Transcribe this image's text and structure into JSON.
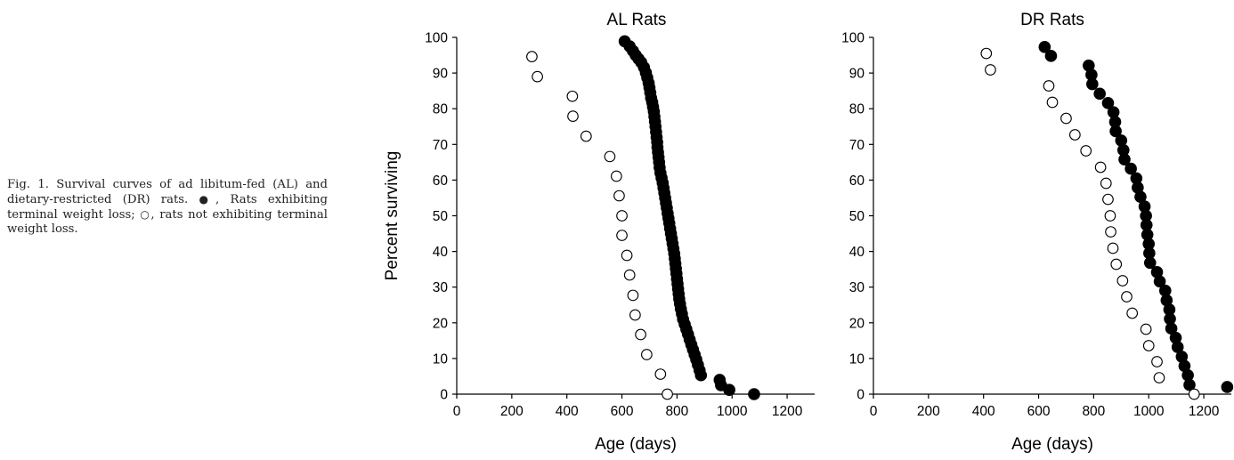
{
  "caption": {
    "prefix": "Fig. 1. Survival curves of ad libitum-fed (AL) and dietary-restricted (DR) rats. ",
    "filled_symbol": "●",
    "filled_text": ", Rats exhibiting terminal weight loss; ",
    "open_symbol": "○",
    "open_text": ", rats not exhibiting terminal weight loss."
  },
  "chart_data": [
    {
      "type": "scatter",
      "title": "AL Rats",
      "xlabel": "Age (days)",
      "ylabel": "Percent surviving",
      "xlim": [
        0,
        1300
      ],
      "ylim": [
        0,
        100
      ],
      "xticks": [
        0,
        200,
        400,
        600,
        800,
        1000,
        1200
      ],
      "yticks": [
        0,
        10,
        20,
        30,
        40,
        50,
        60,
        70,
        80,
        90,
        100
      ],
      "grid": false,
      "series": [
        {
          "marker": "filled-circle",
          "color": "#000000",
          "points": [
            [
              610,
              98.9
            ],
            [
              628,
              97.5
            ],
            [
              640,
              96.2
            ],
            [
              650,
              95.0
            ],
            [
              660,
              94.0
            ],
            [
              670,
              93.0
            ],
            [
              680,
              91.6
            ],
            [
              687,
              90.1
            ],
            [
              692,
              88.7
            ],
            [
              697,
              87.2
            ],
            [
              700,
              85.9
            ],
            [
              703,
              84.5
            ],
            [
              706,
              83.0
            ],
            [
              710,
              81.8
            ],
            [
              713,
              80.5
            ],
            [
              716,
              79.2
            ],
            [
              718,
              77.8
            ],
            [
              720,
              76.4
            ],
            [
              722,
              75.0
            ],
            [
              724,
              73.5
            ],
            [
              726,
              72.0
            ],
            [
              728,
              70.6
            ],
            [
              729,
              69.2
            ],
            [
              731,
              67.8
            ],
            [
              733,
              66.4
            ],
            [
              735,
              65.0
            ],
            [
              737,
              63.5
            ],
            [
              740,
              62.0
            ],
            [
              744,
              60.6
            ],
            [
              748,
              59.2
            ],
            [
              751,
              57.8
            ],
            [
              754,
              56.4
            ],
            [
              757,
              55.0
            ],
            [
              760,
              53.6
            ],
            [
              763,
              52.2
            ],
            [
              766,
              50.7
            ],
            [
              769,
              49.3
            ],
            [
              772,
              47.9
            ],
            [
              775,
              46.4
            ],
            [
              778,
              45.0
            ],
            [
              781,
              43.6
            ],
            [
              784,
              42.2
            ],
            [
              787,
              40.8
            ],
            [
              790,
              39.4
            ],
            [
              792,
              38.0
            ],
            [
              794,
              36.6
            ],
            [
              796,
              35.2
            ],
            [
              798,
              33.8
            ],
            [
              800,
              32.3
            ],
            [
              802,
              30.9
            ],
            [
              804,
              29.5
            ],
            [
              806,
              28.1
            ],
            [
              808,
              26.7
            ],
            [
              811,
              25.3
            ],
            [
              814,
              23.9
            ],
            [
              818,
              22.5
            ],
            [
              822,
              21.0
            ],
            [
              828,
              19.6
            ],
            [
              834,
              18.2
            ],
            [
              840,
              16.8
            ],
            [
              846,
              15.3
            ],
            [
              852,
              13.9
            ],
            [
              858,
              12.5
            ],
            [
              864,
              11.1
            ],
            [
              870,
              9.7
            ],
            [
              876,
              8.2
            ],
            [
              882,
              6.7
            ],
            [
              887,
              5.3
            ],
            [
              955,
              4.0
            ],
            [
              960,
              2.5
            ],
            [
              990,
              1.2
            ],
            [
              1080,
              0.0
            ]
          ]
        },
        {
          "marker": "open-circle",
          "color": "#000000",
          "points": [
            [
              273,
              94.6
            ],
            [
              293,
              89.0
            ],
            [
              420,
              83.5
            ],
            [
              422,
              77.9
            ],
            [
              470,
              72.3
            ],
            [
              556,
              66.6
            ],
            [
              580,
              61.1
            ],
            [
              590,
              55.6
            ],
            [
              600,
              50.0
            ],
            [
              600,
              44.5
            ],
            [
              618,
              38.9
            ],
            [
              628,
              33.4
            ],
            [
              640,
              27.7
            ],
            [
              648,
              22.2
            ],
            [
              668,
              16.7
            ],
            [
              690,
              11.1
            ],
            [
              740,
              5.6
            ],
            [
              765,
              0.0
            ]
          ]
        }
      ]
    },
    {
      "type": "scatter",
      "title": "DR  Rats",
      "xlabel": "Age (days)",
      "ylabel": "",
      "xlim": [
        0,
        1300
      ],
      "ylim": [
        0,
        100
      ],
      "xticks": [
        0,
        200,
        400,
        600,
        800,
        1000,
        1200
      ],
      "yticks": [
        0,
        10,
        20,
        30,
        40,
        50,
        60,
        70,
        80,
        90,
        100
      ],
      "grid": false,
      "series": [
        {
          "marker": "filled-circle",
          "color": "#000000",
          "points": [
            [
              622,
              97.3
            ],
            [
              645,
              94.8
            ],
            [
              782,
              92.1
            ],
            [
              792,
              89.5
            ],
            [
              795,
              86.9
            ],
            [
              822,
              84.2
            ],
            [
              852,
              81.6
            ],
            [
              872,
              79.0
            ],
            [
              878,
              76.3
            ],
            [
              880,
              73.7
            ],
            [
              900,
              71.1
            ],
            [
              908,
              68.4
            ],
            [
              912,
              65.8
            ],
            [
              935,
              63.2
            ],
            [
              955,
              60.5
            ],
            [
              960,
              57.9
            ],
            [
              970,
              55.3
            ],
            [
              985,
              52.6
            ],
            [
              990,
              50.0
            ],
            [
              992,
              47.4
            ],
            [
              995,
              44.7
            ],
            [
              1000,
              42.1
            ],
            [
              1002,
              39.5
            ],
            [
              1005,
              36.8
            ],
            [
              1030,
              34.2
            ],
            [
              1040,
              31.6
            ],
            [
              1060,
              29.0
            ],
            [
              1065,
              26.3
            ],
            [
              1075,
              23.7
            ],
            [
              1077,
              21.1
            ],
            [
              1082,
              18.4
            ],
            [
              1098,
              15.8
            ],
            [
              1105,
              13.2
            ],
            [
              1120,
              10.5
            ],
            [
              1130,
              7.9
            ],
            [
              1142,
              5.3
            ],
            [
              1148,
              2.6
            ],
            [
              1285,
              2.0
            ]
          ]
        },
        {
          "marker": "open-circle",
          "color": "#000000",
          "points": [
            [
              410,
              95.5
            ],
            [
              425,
              90.9
            ],
            [
              637,
              86.4
            ],
            [
              650,
              81.8
            ],
            [
              700,
              77.3
            ],
            [
              732,
              72.7
            ],
            [
              772,
              68.2
            ],
            [
              825,
              63.6
            ],
            [
              845,
              59.1
            ],
            [
              852,
              54.6
            ],
            [
              860,
              50.0
            ],
            [
              862,
              45.5
            ],
            [
              870,
              40.9
            ],
            [
              882,
              36.4
            ],
            [
              905,
              31.8
            ],
            [
              920,
              27.3
            ],
            [
              940,
              22.7
            ],
            [
              990,
              18.2
            ],
            [
              1000,
              13.6
            ],
            [
              1030,
              9.1
            ],
            [
              1038,
              4.6
            ],
            [
              1165,
              0.0
            ]
          ]
        }
      ]
    }
  ]
}
